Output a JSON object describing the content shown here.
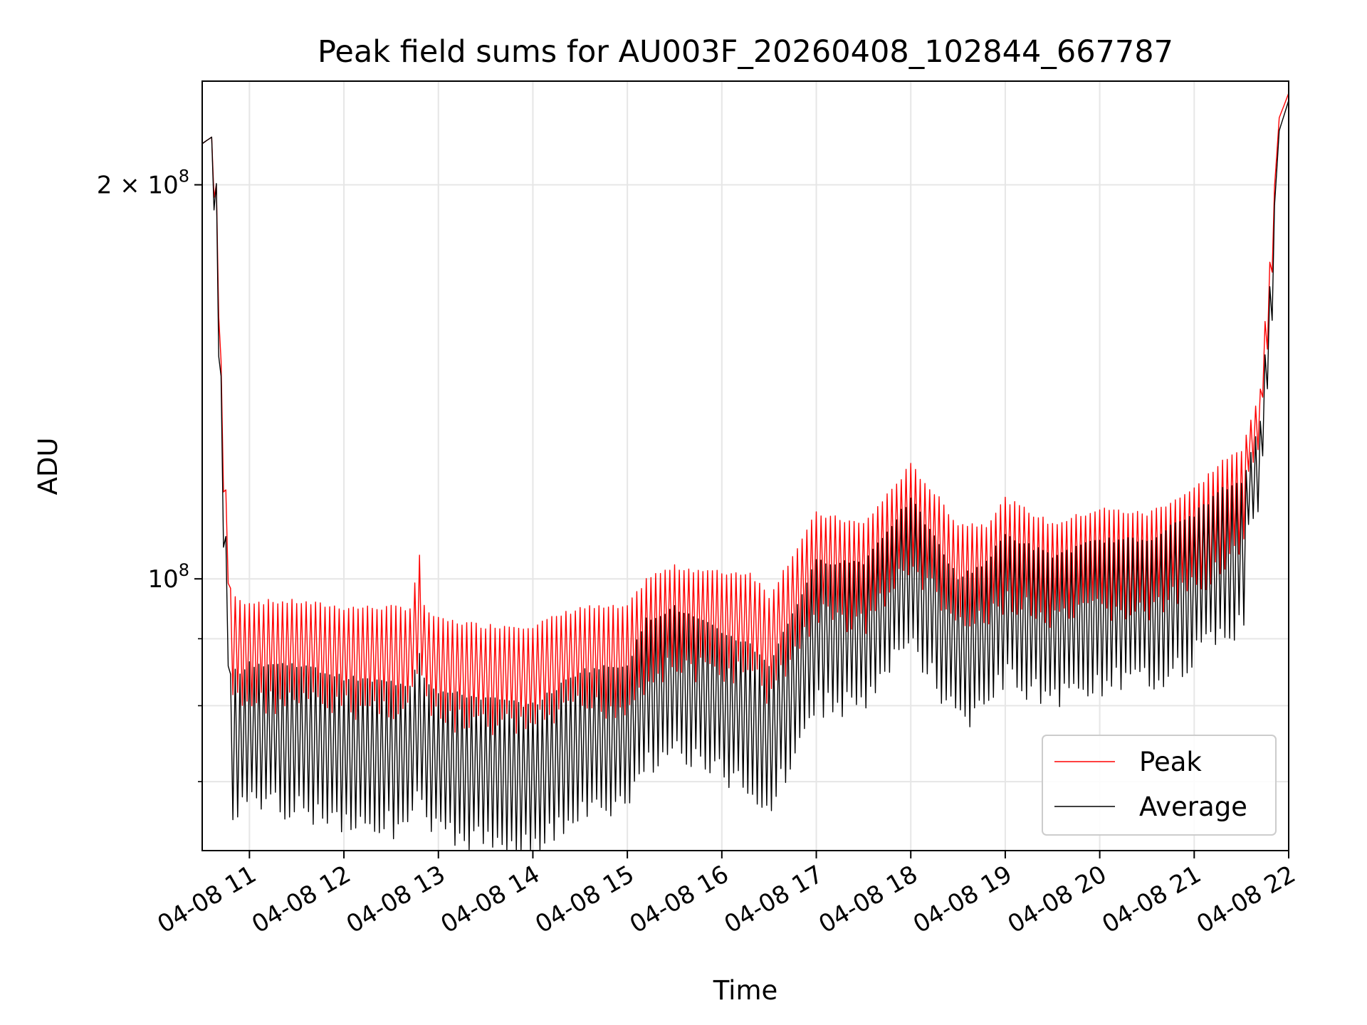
{
  "chart_data": {
    "type": "line",
    "title": "Peak field sums for AU003F_20260408_102844_667787",
    "xlabel": "Time",
    "ylabel": "ADU",
    "yscale": "log",
    "ylim": [
      62000000,
      240000000
    ],
    "xlim_hours": [
      10.5,
      22.0
    ],
    "grid": true,
    "legend_position": "lower-right",
    "x_ticks": [
      {
        "hour": 11,
        "label": "04-08 11"
      },
      {
        "hour": 12,
        "label": "04-08 12"
      },
      {
        "hour": 13,
        "label": "04-08 13"
      },
      {
        "hour": 14,
        "label": "04-08 14"
      },
      {
        "hour": 15,
        "label": "04-08 15"
      },
      {
        "hour": 16,
        "label": "04-08 16"
      },
      {
        "hour": 17,
        "label": "04-08 17"
      },
      {
        "hour": 18,
        "label": "04-08 18"
      },
      {
        "hour": 19,
        "label": "04-08 19"
      },
      {
        "hour": 20,
        "label": "04-08 20"
      },
      {
        "hour": 21,
        "label": "04-08 21"
      },
      {
        "hour": 22,
        "label": "04-08 22"
      }
    ],
    "y_major_ticks": [
      {
        "value": 100000000,
        "label_base": "10",
        "label_exp": "8",
        "label_mult": ""
      },
      {
        "value": 200000000,
        "label_base": "10",
        "label_exp": "8",
        "label_mult": "2 × "
      }
    ],
    "y_minor_ticks": [
      70000000,
      80000000,
      90000000
    ],
    "series": [
      {
        "name": "Peak",
        "color": "#ff0000",
        "knots_hours": [
          10.5,
          10.62,
          10.65,
          10.72,
          10.8,
          10.9,
          11.0,
          11.5,
          12.0,
          12.7,
          12.8,
          12.85,
          13.0,
          13.5,
          14.0,
          14.5,
          15.0,
          15.2,
          15.5,
          16.0,
          16.3,
          16.5,
          17.0,
          17.5,
          18.0,
          18.3,
          18.5,
          18.8,
          19.0,
          19.5,
          20.0,
          20.5,
          21.0,
          21.3,
          21.5,
          21.7,
          21.8,
          21.9,
          22.0
        ],
        "knots_values": [
          215000000,
          218000000,
          200000000,
          130000000,
          98000000,
          96000000,
          96000000,
          96000000,
          95000000,
          95000000,
          104000000,
          95000000,
          93000000,
          92000000,
          92000000,
          95000000,
          95000000,
          100000000,
          102000000,
          101000000,
          101000000,
          97000000,
          112000000,
          110000000,
          122000000,
          115000000,
          110000000,
          110000000,
          115000000,
          110000000,
          113000000,
          112000000,
          117000000,
          123000000,
          125000000,
          140000000,
          175000000,
          225000000,
          235000000
        ],
        "trough_ratio": 0.86
      },
      {
        "name": "Average",
        "color": "#000000",
        "knots_hours": [
          10.5,
          10.62,
          10.65,
          10.72,
          10.8,
          10.9,
          11.0,
          11.5,
          12.0,
          12.7,
          12.8,
          12.85,
          13.0,
          13.5,
          14.0,
          14.5,
          15.0,
          15.2,
          15.5,
          16.0,
          16.3,
          16.5,
          17.0,
          17.5,
          18.0,
          18.3,
          18.5,
          18.8,
          19.0,
          19.5,
          20.0,
          20.5,
          21.0,
          21.3,
          21.5,
          21.7,
          21.8,
          21.9,
          22.0
        ],
        "knots_values": [
          215000000,
          218000000,
          200000000,
          125000000,
          85000000,
          85000000,
          86000000,
          86000000,
          84000000,
          83000000,
          88000000,
          84000000,
          82000000,
          81000000,
          80000000,
          85000000,
          86000000,
          93000000,
          95000000,
          91000000,
          89000000,
          86000000,
          103000000,
          103000000,
          115000000,
          106000000,
          100000000,
          103000000,
          108000000,
          104000000,
          107000000,
          107000000,
          112000000,
          117000000,
          118000000,
          132000000,
          168000000,
          220000000,
          232000000
        ],
        "trough_ratio": 0.8
      }
    ]
  }
}
